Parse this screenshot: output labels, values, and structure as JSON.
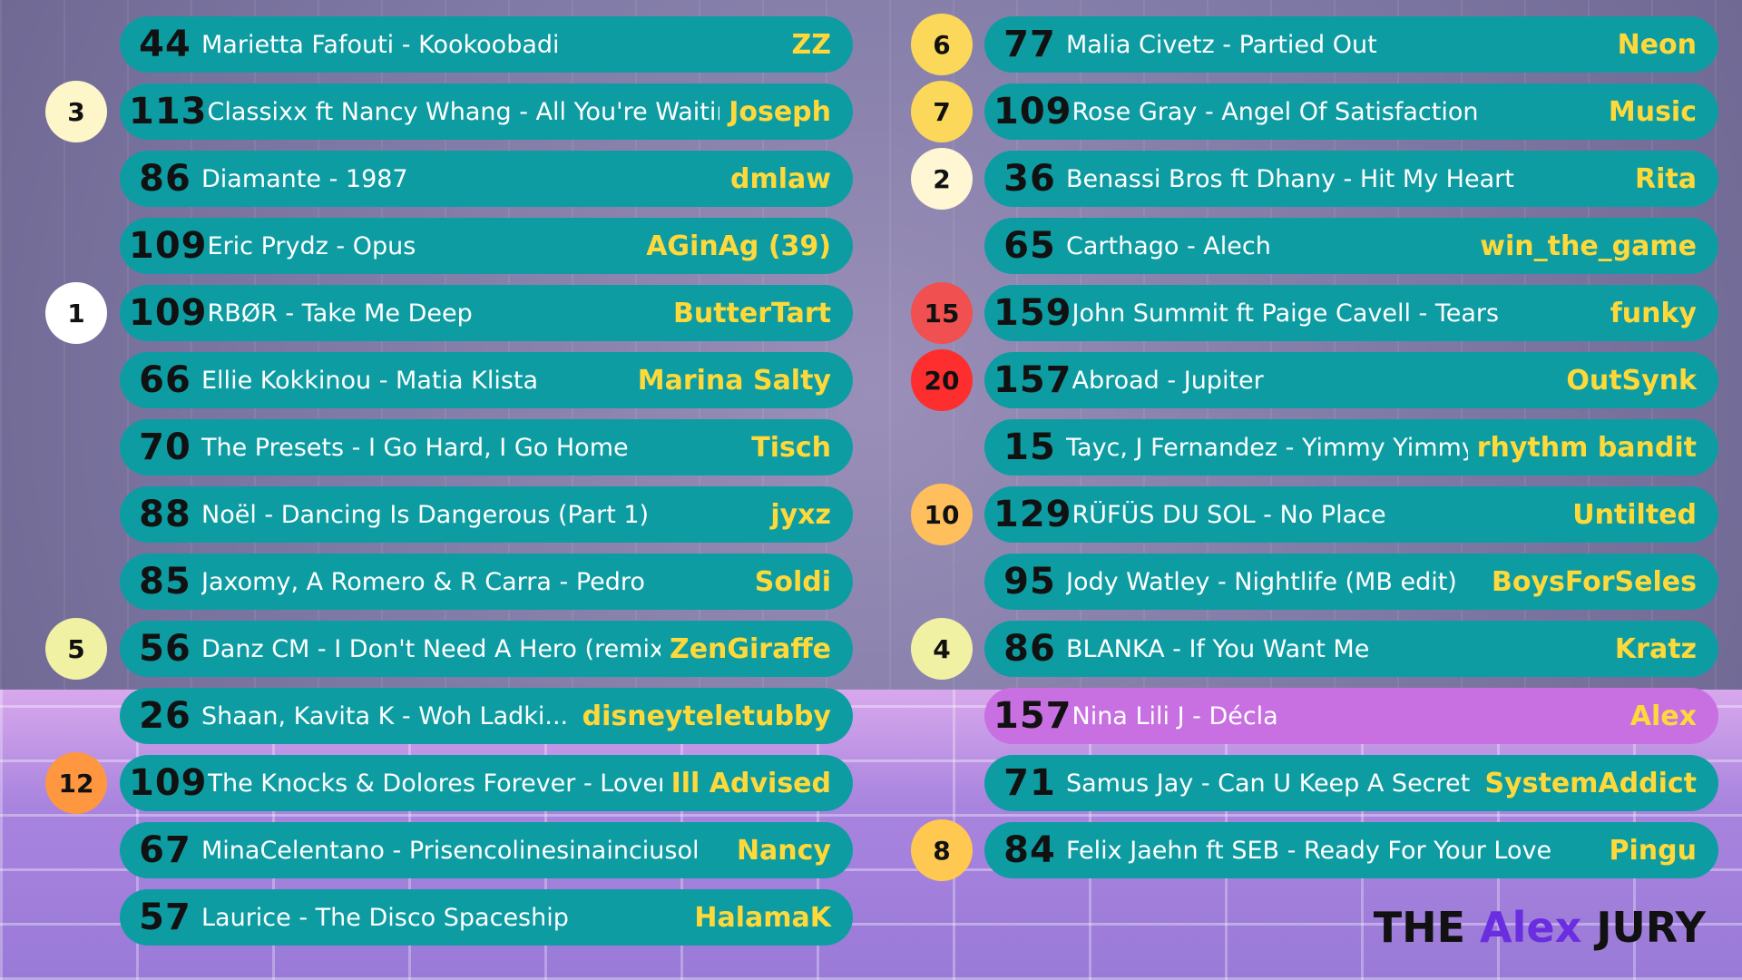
{
  "left": [
    {
      "score": 44,
      "song": "Marietta Fafouti - Kookoobadi",
      "user": "ZZ"
    },
    {
      "score": 113,
      "song": "Classixx ft Nancy Whang - All You're Waiting For",
      "user": "Joseph",
      "badge": {
        "label": "3",
        "color": "#fdf6c9"
      }
    },
    {
      "score": 86,
      "song": "Diamante - 1987",
      "user": "dmlaw"
    },
    {
      "score": 109,
      "song": "Eric Prydz - Opus",
      "user": "AGinAg (39)"
    },
    {
      "score": 109,
      "song": "RBØR - Take Me Deep",
      "user": "ButterTart",
      "badge": {
        "label": "1",
        "color": "#ffffff"
      }
    },
    {
      "score": 66,
      "song": "Ellie Kokkinou - Matia Klista",
      "user": "Marina Salty"
    },
    {
      "score": 70,
      "song": "The Presets - I Go Hard, I Go Home",
      "user": "Tisch"
    },
    {
      "score": 88,
      "song": "Noël - Dancing Is Dangerous (Part 1)",
      "user": "jyxz"
    },
    {
      "score": 85,
      "song": "Jaxomy, A Romero & R Carra - Pedro",
      "user": "Soldi"
    },
    {
      "score": 56,
      "song": "Danz CM - I Don't Need A Hero (remix)",
      "user": "ZenGiraffe",
      "badge": {
        "label": "5",
        "color": "#f1f1a4"
      }
    },
    {
      "score": 26,
      "song": "Shaan, Kavita K - Woh Ladki...",
      "user": "disneyteletubby"
    },
    {
      "score": 109,
      "song": "The Knocks & Dolores Forever - Lover",
      "user": "Ill Advised",
      "badge": {
        "label": "12",
        "color": "#ff9640"
      }
    },
    {
      "score": 67,
      "song": "MinaCelentano - Prisencolinesinainciusol",
      "user": "Nancy"
    },
    {
      "score": 57,
      "song": "Laurice - The Disco Spaceship",
      "user": "HalamaK"
    }
  ],
  "right": [
    {
      "score": 77,
      "song": "Malia Civetz - Partied Out",
      "user": "Neon",
      "badge": {
        "label": "6",
        "color": "#fcd85a"
      }
    },
    {
      "score": 109,
      "song": "Rose Gray - Angel Of Satisfaction",
      "user": "Music",
      "badge": {
        "label": "7",
        "color": "#fcd85a"
      }
    },
    {
      "score": 36,
      "song": "Benassi Bros ft Dhany - Hit My Heart",
      "user": "Rita",
      "badge": {
        "label": "2",
        "color": "#fff6d4"
      }
    },
    {
      "score": 65,
      "song": "Carthago - Alech",
      "user": "win_the_game"
    },
    {
      "score": 159,
      "song": "John Summit ft Paige Cavell - Tears",
      "user": "funky",
      "badge": {
        "label": "15",
        "color": "#f05050"
      }
    },
    {
      "score": 157,
      "song": "Abroad - Jupiter",
      "user": "OutSynk",
      "badge": {
        "label": "20",
        "color": "#ff2e2e"
      }
    },
    {
      "score": 15,
      "song": "Tayc, J Fernandez - Yimmy Yimmy",
      "user": "rhythm bandit"
    },
    {
      "score": 129,
      "song": "RÜFÜS DU SOL - No Place",
      "user": "Untilted",
      "badge": {
        "label": "10",
        "color": "#ffbf5c"
      }
    },
    {
      "score": 95,
      "song": "Jody Watley - Nightlife (MB edit)",
      "user": "BoysForSeles"
    },
    {
      "score": 86,
      "song": "BLANKA - If You Want Me",
      "user": "Kratz",
      "badge": {
        "label": "4",
        "color": "#f1f1a4"
      }
    },
    {
      "score": 157,
      "song": "Nina Lili J - Décla",
      "user": "Alex",
      "highlight": true
    },
    {
      "score": 71,
      "song": "Samus Jay - Can U Keep A Secret",
      "user": "SystemAddict"
    },
    {
      "score": 84,
      "song": "Felix Jaehn ft SEB - Ready For Your Love",
      "user": "Pingu",
      "badge": {
        "label": "8",
        "color": "#ffc850"
      }
    }
  ],
  "footer": {
    "the": "THE",
    "name": "Alex",
    "jury": "JURY"
  }
}
